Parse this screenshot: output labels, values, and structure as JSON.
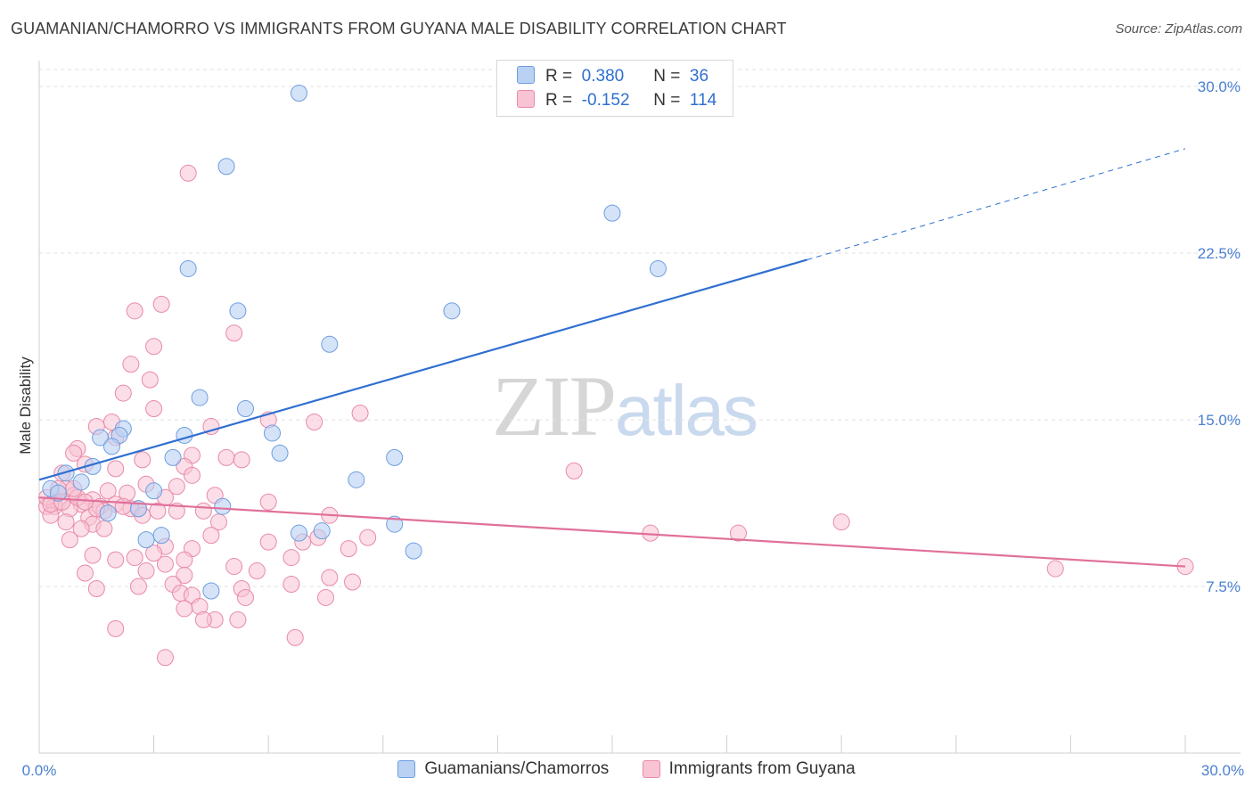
{
  "header": {
    "title": "GUAMANIAN/CHAMORRO VS IMMIGRANTS FROM GUYANA MALE DISABILITY CORRELATION CHART",
    "source": "Source: ZipAtlas.com"
  },
  "watermark": {
    "zip": "ZIP",
    "atlas": "atlas"
  },
  "legend": {
    "rows": [
      {
        "r_label": "R =",
        "r_value": "0.380",
        "n_label": "N =",
        "n_value": "36"
      },
      {
        "r_label": "R =",
        "r_value": "-0.152",
        "n_label": "N =",
        "n_value": "114"
      }
    ]
  },
  "chart_data": {
    "type": "scatter",
    "xlabel": "",
    "ylabel": "Male Disability",
    "xlim": [
      0,
      30
    ],
    "ylim": [
      0,
      30
    ],
    "x_tick_labels": [
      "0.0%",
      "30.0%"
    ],
    "y_ticks": [
      7.5,
      15.0,
      22.5,
      30.0
    ],
    "y_tick_labels": [
      "7.5%",
      "15.0%",
      "22.5%",
      "30.0%"
    ],
    "grid": "horizontal dashed",
    "legend_position": "bottom",
    "colors": {
      "guam_fill": "#b9d1f3",
      "guam_stroke": "#6d9ee0",
      "guam_line": "#2f6fd0",
      "guyana_fill": "#f8c3d3",
      "guyana_stroke": "#e98aa8",
      "guyana_line": "#e0709a"
    },
    "series": [
      {
        "name": "Guamanians/Chamorros",
        "trend": {
          "x0": 0,
          "y0": 12.3,
          "x1": 20.1,
          "y1": 22.2,
          "dashed_to_x": 30,
          "dashed_to_y": 27.2
        },
        "points": [
          [
            6.8,
            29.7
          ],
          [
            4.9,
            26.4
          ],
          [
            15.0,
            24.3
          ],
          [
            3.9,
            21.8
          ],
          [
            16.2,
            21.8
          ],
          [
            5.2,
            19.9
          ],
          [
            10.8,
            19.9
          ],
          [
            7.6,
            18.4
          ],
          [
            4.2,
            16.0
          ],
          [
            5.4,
            15.5
          ],
          [
            2.2,
            14.6
          ],
          [
            3.8,
            14.3
          ],
          [
            6.1,
            14.4
          ],
          [
            1.6,
            14.2
          ],
          [
            2.1,
            14.3
          ],
          [
            1.9,
            13.8
          ],
          [
            6.3,
            13.5
          ],
          [
            3.5,
            13.3
          ],
          [
            9.3,
            13.3
          ],
          [
            1.4,
            12.9
          ],
          [
            0.7,
            12.6
          ],
          [
            8.3,
            12.3
          ],
          [
            1.1,
            12.2
          ],
          [
            0.3,
            11.9
          ],
          [
            0.5,
            11.7
          ],
          [
            3.0,
            11.8
          ],
          [
            4.8,
            11.1
          ],
          [
            2.6,
            11.0
          ],
          [
            1.8,
            10.8
          ],
          [
            9.3,
            10.3
          ],
          [
            7.4,
            10.0
          ],
          [
            6.8,
            9.9
          ],
          [
            3.2,
            9.8
          ],
          [
            2.8,
            9.6
          ],
          [
            9.8,
            9.1
          ],
          [
            4.5,
            7.3
          ]
        ]
      },
      {
        "name": "Immigrants from Guyana",
        "trend": {
          "x0": 0,
          "y0": 11.5,
          "x1": 30,
          "y1": 8.4
        },
        "points": [
          [
            3.9,
            26.1
          ],
          [
            3.2,
            20.2
          ],
          [
            2.5,
            19.9
          ],
          [
            5.1,
            18.9
          ],
          [
            3.0,
            18.3
          ],
          [
            2.4,
            17.5
          ],
          [
            2.9,
            16.8
          ],
          [
            2.2,
            16.2
          ],
          [
            3.0,
            15.5
          ],
          [
            8.4,
            15.3
          ],
          [
            6.0,
            15.0
          ],
          [
            7.2,
            14.9
          ],
          [
            1.9,
            14.9
          ],
          [
            4.5,
            14.7
          ],
          [
            1.5,
            14.7
          ],
          [
            2.0,
            14.2
          ],
          [
            1.0,
            13.7
          ],
          [
            0.9,
            13.5
          ],
          [
            4.0,
            13.4
          ],
          [
            4.9,
            13.3
          ],
          [
            5.3,
            13.2
          ],
          [
            2.7,
            13.2
          ],
          [
            1.2,
            13.0
          ],
          [
            3.8,
            12.9
          ],
          [
            2.0,
            12.8
          ],
          [
            14.0,
            12.7
          ],
          [
            0.6,
            12.6
          ],
          [
            4.0,
            12.5
          ],
          [
            2.8,
            12.1
          ],
          [
            3.6,
            12.0
          ],
          [
            0.7,
            11.9
          ],
          [
            4.6,
            11.6
          ],
          [
            1.8,
            11.8
          ],
          [
            2.3,
            11.7
          ],
          [
            0.9,
            11.6
          ],
          [
            3.3,
            11.5
          ],
          [
            1.4,
            11.4
          ],
          [
            0.5,
            11.3
          ],
          [
            2.0,
            11.2
          ],
          [
            1.1,
            11.2
          ],
          [
            6.0,
            11.3
          ],
          [
            0.2,
            11.1
          ],
          [
            0.4,
            11.1
          ],
          [
            1.6,
            11.1
          ],
          [
            0.8,
            11.0
          ],
          [
            2.6,
            11.0
          ],
          [
            3.6,
            10.9
          ],
          [
            1.7,
            10.9
          ],
          [
            0.3,
            10.7
          ],
          [
            7.6,
            10.7
          ],
          [
            1.3,
            10.6
          ],
          [
            0.7,
            10.4
          ],
          [
            4.7,
            10.4
          ],
          [
            1.4,
            10.3
          ],
          [
            21.0,
            10.4
          ],
          [
            1.7,
            10.1
          ],
          [
            1.1,
            10.1
          ],
          [
            16.0,
            9.9
          ],
          [
            18.3,
            9.9
          ],
          [
            4.5,
            9.8
          ],
          [
            7.3,
            9.7
          ],
          [
            8.6,
            9.7
          ],
          [
            0.8,
            9.6
          ],
          [
            6.0,
            9.5
          ],
          [
            6.9,
            9.5
          ],
          [
            3.3,
            9.3
          ],
          [
            4.0,
            9.2
          ],
          [
            8.1,
            9.2
          ],
          [
            3.0,
            9.0
          ],
          [
            1.4,
            8.9
          ],
          [
            2.5,
            8.8
          ],
          [
            3.8,
            8.7
          ],
          [
            6.6,
            8.8
          ],
          [
            2.0,
            8.7
          ],
          [
            3.3,
            8.5
          ],
          [
            5.1,
            8.4
          ],
          [
            2.8,
            8.2
          ],
          [
            5.7,
            8.2
          ],
          [
            1.2,
            8.1
          ],
          [
            3.8,
            8.0
          ],
          [
            7.6,
            7.9
          ],
          [
            8.2,
            7.7
          ],
          [
            3.5,
            7.6
          ],
          [
            6.6,
            7.6
          ],
          [
            2.6,
            7.5
          ],
          [
            1.5,
            7.4
          ],
          [
            5.3,
            7.4
          ],
          [
            3.7,
            7.2
          ],
          [
            4.0,
            7.1
          ],
          [
            5.4,
            7.0
          ],
          [
            7.5,
            7.0
          ],
          [
            4.2,
            6.6
          ],
          [
            3.8,
            6.5
          ],
          [
            4.6,
            6.0
          ],
          [
            4.3,
            6.0
          ],
          [
            5.2,
            6.0
          ],
          [
            2.0,
            5.6
          ],
          [
            6.7,
            5.2
          ],
          [
            3.3,
            4.3
          ],
          [
            26.6,
            8.3
          ],
          [
            30.0,
            8.4
          ],
          [
            0.2,
            11.5
          ],
          [
            0.5,
            11.9
          ],
          [
            0.3,
            11.2
          ],
          [
            0.6,
            11.3
          ],
          [
            1.0,
            11.5
          ],
          [
            2.4,
            11.0
          ],
          [
            2.7,
            10.7
          ],
          [
            1.5,
            11.0
          ],
          [
            3.1,
            10.9
          ],
          [
            0.9,
            11.9
          ],
          [
            1.2,
            11.3
          ],
          [
            2.2,
            11.1
          ],
          [
            4.3,
            10.9
          ]
        ]
      }
    ]
  }
}
